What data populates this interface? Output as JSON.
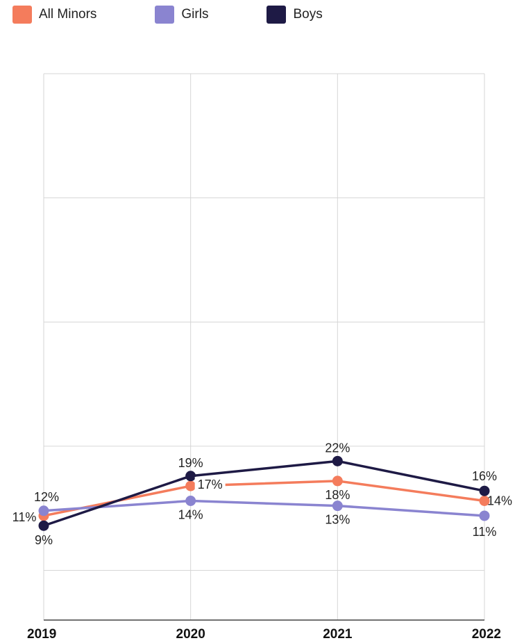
{
  "chart_data": {
    "type": "line",
    "categories": [
      "2019",
      "2020",
      "2021",
      "2022"
    ],
    "series": [
      {
        "name": "All Minors",
        "color": "#f47c5c",
        "values": [
          11,
          17,
          18,
          14
        ],
        "labels": [
          "11%",
          "17%",
          "18%",
          "14%"
        ]
      },
      {
        "name": "Girls",
        "color": "#8a84d0",
        "values": [
          12,
          14,
          13,
          11
        ],
        "labels": [
          "12%",
          "14%",
          "13%",
          "11%"
        ]
      },
      {
        "name": "Boys",
        "color": "#1e1a45",
        "values": [
          9,
          19,
          22,
          16
        ],
        "labels": [
          "9%",
          "19%",
          "22%",
          "16%"
        ]
      }
    ],
    "ylim": [
      -10,
      100
    ],
    "grid": true,
    "legend_position": "top-left"
  }
}
